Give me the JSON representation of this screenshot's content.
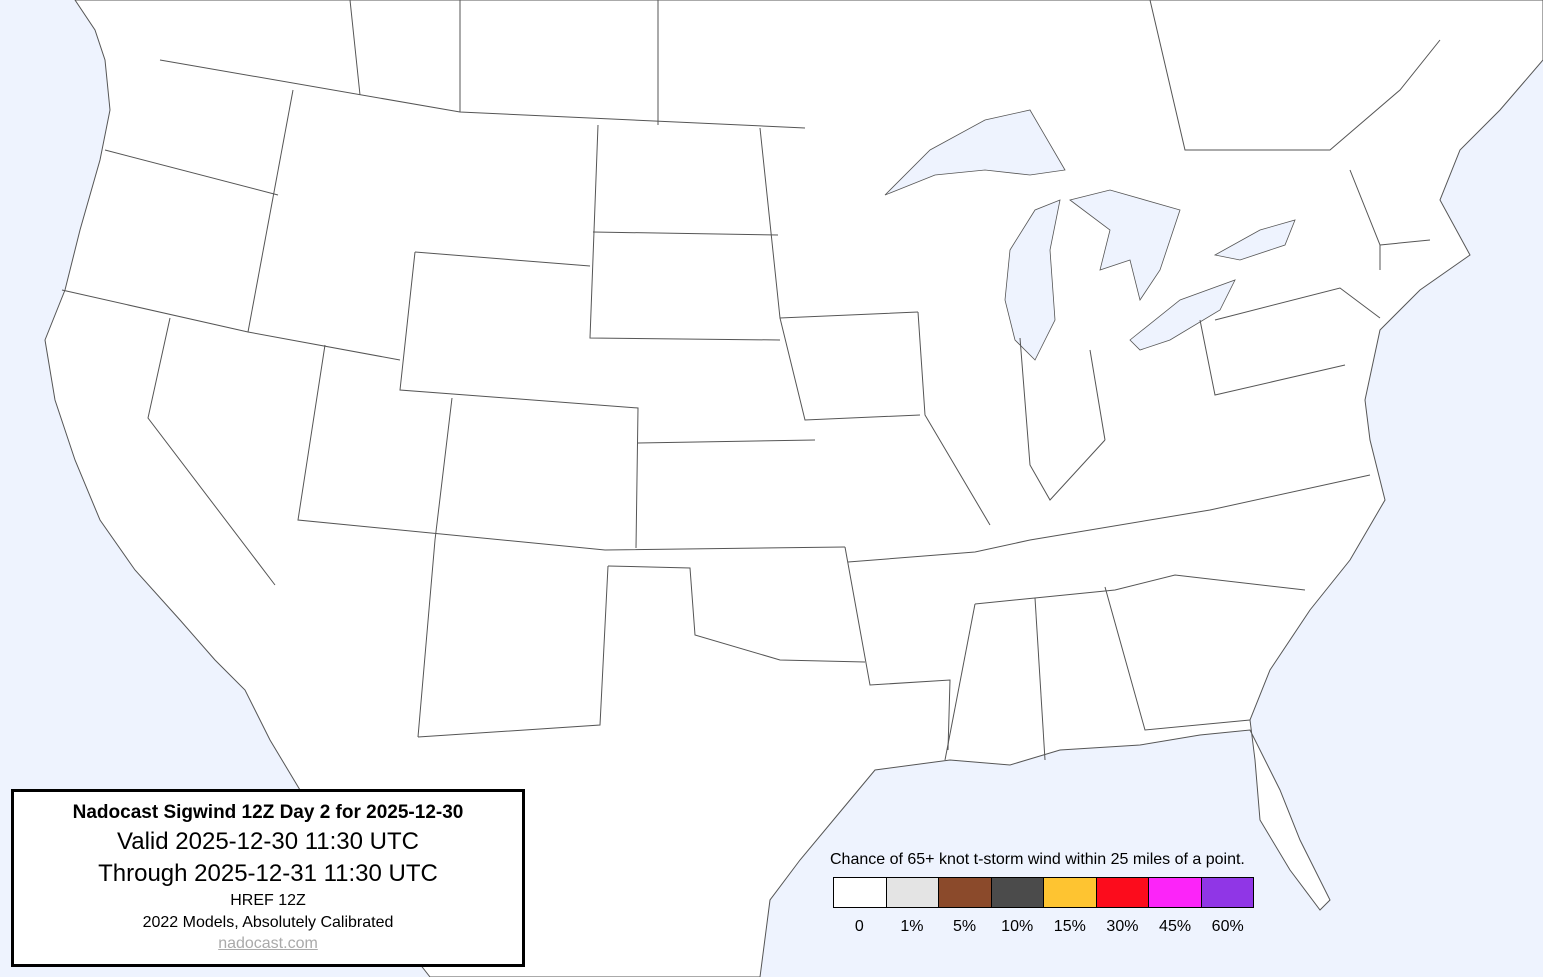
{
  "info": {
    "title": "Nadocast Sigwind 12Z Day 2 for 2025-12-30",
    "valid": "Valid 2025-12-30 11:30 UTC",
    "through": "Through 2025-12-31 11:30 UTC",
    "model": "HREF 12Z",
    "calibration": "2022 Models, Absolutely Calibrated",
    "link": "nadocast.com"
  },
  "legend": {
    "title": "Chance of 65+ knot t-storm wind within 25 miles of a point.",
    "bins": [
      {
        "label": "0",
        "color": "#ffffff"
      },
      {
        "label": "1%",
        "color": "#e4e4e4"
      },
      {
        "label": "5%",
        "color": "#8b4a2b"
      },
      {
        "label": "10%",
        "color": "#4b4b4b"
      },
      {
        "label": "15%",
        "color": "#fec431"
      },
      {
        "label": "30%",
        "color": "#fc0c1c"
      },
      {
        "label": "45%",
        "color": "#fc24f9"
      },
      {
        "label": "60%",
        "color": "#9036e6"
      }
    ]
  },
  "map": {
    "water_color": "#eef3fe",
    "land_color": "#ffffff",
    "border_color": "#555555"
  }
}
